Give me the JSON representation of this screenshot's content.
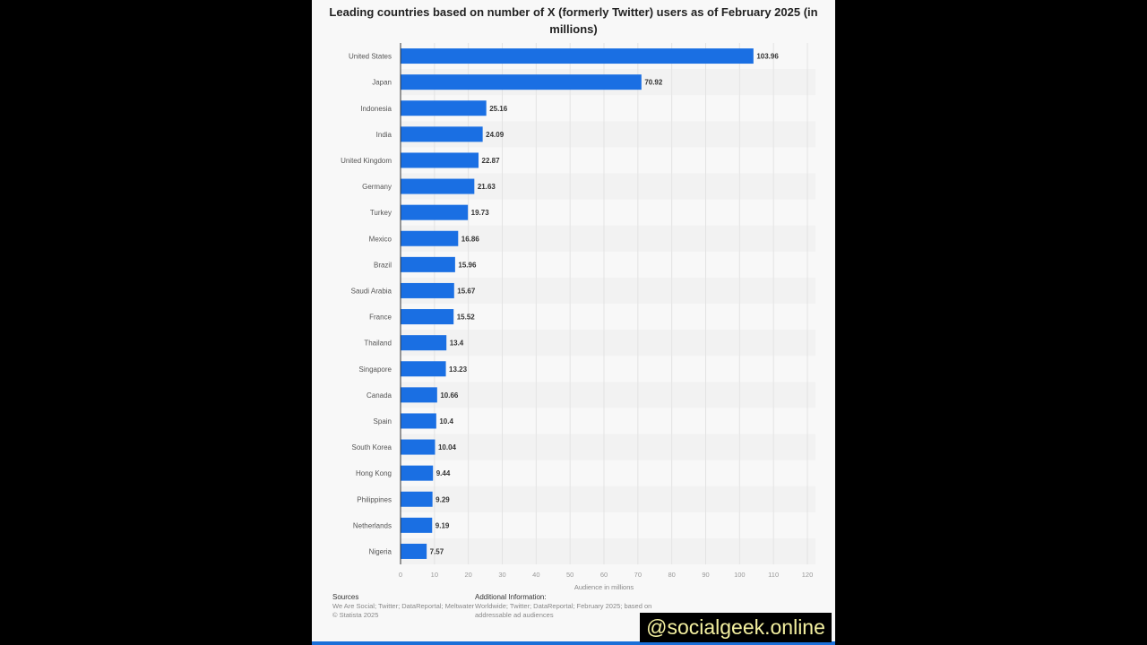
{
  "chart_data": {
    "type": "bar",
    "orientation": "horizontal",
    "title": "Leading countries based on number of X (formerly Twitter) users as of February 2025 (in millions)",
    "xlabel": "Audience in millions",
    "ylabel": "",
    "xlim": [
      0,
      120
    ],
    "xticks": [
      0,
      10,
      20,
      30,
      40,
      50,
      60,
      70,
      80,
      90,
      100,
      110,
      120
    ],
    "grid": true,
    "bar_color": "#1a6fe3",
    "categories": [
      "United States",
      "Japan",
      "Indonesia",
      "India",
      "United Kingdom",
      "Germany",
      "Turkey",
      "Mexico",
      "Brazil",
      "Saudi Arabia",
      "France",
      "Thailand",
      "Singapore",
      "Canada",
      "Spain",
      "South Korea",
      "Hong Kong",
      "Philippines",
      "Netherlands",
      "Nigeria"
    ],
    "values": [
      103.96,
      70.92,
      25.16,
      24.09,
      22.87,
      21.63,
      19.73,
      16.86,
      15.96,
      15.67,
      15.52,
      13.4,
      13.23,
      10.66,
      10.4,
      10.04,
      9.44,
      9.29,
      9.19,
      7.57
    ],
    "value_labels": [
      "103.96",
      "70.92",
      "25.16",
      "24.09",
      "22.87",
      "21.63",
      "19.73",
      "16.86",
      "15.96",
      "15.67",
      "15.52",
      "13.4",
      "13.23",
      "10.66",
      "10.4",
      "10.04",
      "9.44",
      "9.29",
      "9.19",
      "7.57"
    ]
  },
  "footer": {
    "sources_heading": "Sources",
    "sources_text": "We Are Social; Twitter; DataReportal; Meltwater",
    "copyright": "© Statista 2025",
    "additional_heading": "Additional Information:",
    "additional_text": "Worldwide; Twitter; DataReportal; February 2025; based on addressable ad audiences"
  },
  "watermark": "@socialgeek.online"
}
